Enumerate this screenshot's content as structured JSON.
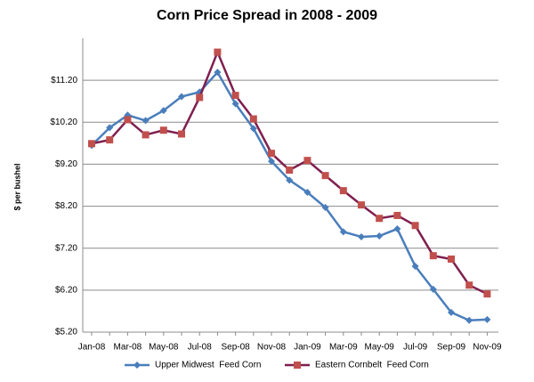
{
  "chart_data": {
    "type": "line",
    "title": "Corn Price Spread in 2008 - 2009",
    "y_label": "$ per bushel",
    "categories": [
      "Jan-08",
      null,
      "Mar-08",
      null,
      "May-08",
      null,
      "Jul-08",
      null,
      "Sep-08",
      null,
      "Nov-08",
      null,
      "Jan-09",
      null,
      "Mar-09",
      null,
      "May-09",
      null,
      "Jul-09",
      null,
      "Sep-09",
      null,
      "Nov-09"
    ],
    "series": [
      {
        "name": "Upper Midwest  Feed Corn",
        "color": "#4a7ebb",
        "marker_color": "#4a7ebb",
        "marker": "diamond",
        "values": [
          9.65,
          10.07,
          10.37,
          10.24,
          10.48,
          10.81,
          10.92,
          11.39,
          10.64,
          10.05,
          9.27,
          8.82,
          8.53,
          8.17,
          7.59,
          7.47,
          7.49,
          7.66,
          6.77,
          6.22,
          5.67,
          5.48,
          5.5
        ]
      },
      {
        "name": "Eastern Cornbelt  Feed Corn",
        "color": "#7f1f4f",
        "marker_color": "#c0504d",
        "marker": "square",
        "values": [
          9.69,
          9.78,
          10.26,
          9.9,
          10.01,
          9.92,
          10.79,
          11.87,
          10.84,
          10.28,
          9.46,
          9.06,
          9.29,
          8.93,
          8.57,
          8.23,
          7.91,
          7.98,
          7.74,
          7.02,
          6.94,
          6.32,
          6.11
        ]
      }
    ],
    "ylim": [
      5.2,
      12.2
    ],
    "yticks": [
      {
        "value": 5.2,
        "label": "$5.20"
      },
      {
        "value": 6.2,
        "label": "$6.20"
      },
      {
        "value": 7.2,
        "label": "$7.20"
      },
      {
        "value": 8.2,
        "label": "$8.20"
      },
      {
        "value": 9.2,
        "label": "$9.20"
      },
      {
        "value": 10.2,
        "label": "$10.20"
      },
      {
        "value": 11.2,
        "label": "$11.20"
      }
    ],
    "grid": true,
    "legend": "bottom"
  }
}
